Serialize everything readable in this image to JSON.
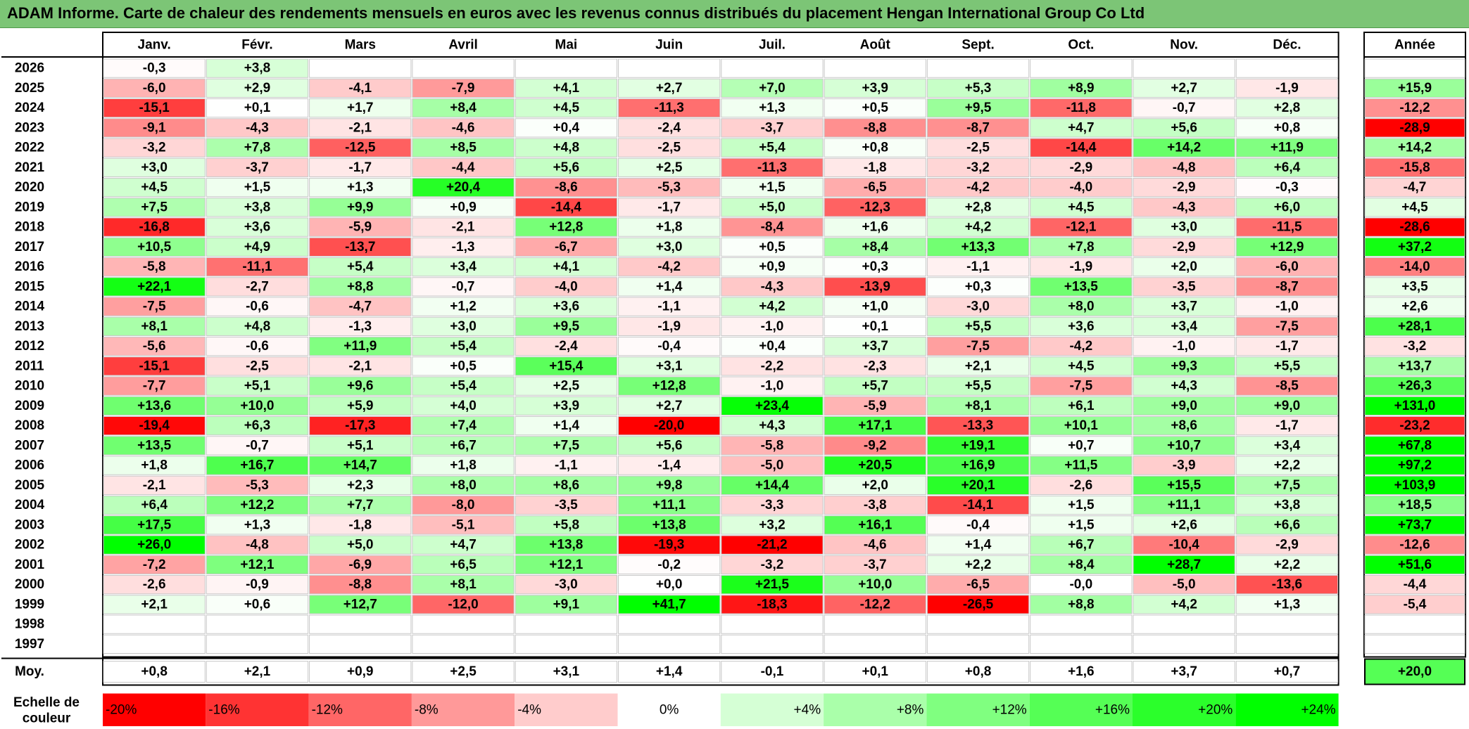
{
  "title": "ADAM Informe. Carte de chaleur des rendements mensuels en euros avec les revenus connus distribués du placement Hengan International Group Co Ltd",
  "colors": {
    "title_bg": "#7cc576",
    "negative_max": "#ff0000",
    "positive_max": "#00ff00",
    "neutral": "#ffffff",
    "grid": "#c8c8c8"
  },
  "chart_data": {
    "type": "heatmap",
    "months": [
      "Janv.",
      "Févr.",
      "Mars",
      "Avril",
      "Mai",
      "Juin",
      "Juil.",
      "Août",
      "Sept.",
      "Oct.",
      "Nov.",
      "Déc."
    ],
    "year_header": "Année",
    "avg_label": "Moy.",
    "scale_label": [
      "Echelle de",
      "couleur"
    ],
    "rows": [
      {
        "year": "2026",
        "months": [
          "-0,3",
          "+3,8",
          "",
          "",
          "",
          "",
          "",
          "",
          "",
          "",
          "",
          ""
        ],
        "total": ""
      },
      {
        "year": "2025",
        "months": [
          "-6,0",
          "+2,9",
          "-4,1",
          "-7,9",
          "+4,1",
          "+2,7",
          "+7,0",
          "+3,9",
          "+5,3",
          "+8,9",
          "+2,7",
          "-1,9"
        ],
        "total": "+15,9"
      },
      {
        "year": "2024",
        "months": [
          "-15,1",
          "+0,1",
          "+1,7",
          "+8,4",
          "+4,5",
          "-11,3",
          "+1,3",
          "+0,5",
          "+9,5",
          "-11,8",
          "-0,7",
          "+2,8"
        ],
        "total": "-12,2"
      },
      {
        "year": "2023",
        "months": [
          "-9,1",
          "-4,3",
          "-2,1",
          "-4,6",
          "+0,4",
          "-2,4",
          "-3,7",
          "-8,8",
          "-8,7",
          "+4,7",
          "+5,6",
          "+0,8"
        ],
        "total": "-28,9"
      },
      {
        "year": "2022",
        "months": [
          "-3,2",
          "+7,8",
          "-12,5",
          "+8,5",
          "+4,8",
          "-2,5",
          "+5,4",
          "+0,8",
          "-2,5",
          "-14,4",
          "+14,2",
          "+11,9"
        ],
        "total": "+14,2"
      },
      {
        "year": "2021",
        "months": [
          "+3,0",
          "-3,7",
          "-1,7",
          "-4,4",
          "+5,6",
          "+2,5",
          "-11,3",
          "-1,8",
          "-3,2",
          "-2,9",
          "-4,8",
          "+6,4"
        ],
        "total": "-15,8"
      },
      {
        "year": "2020",
        "months": [
          "+4,5",
          "+1,5",
          "+1,3",
          "+20,4",
          "-8,6",
          "-5,3",
          "+1,5",
          "-6,5",
          "-4,2",
          "-4,0",
          "-2,9",
          "-0,3"
        ],
        "total": "-4,7"
      },
      {
        "year": "2019",
        "months": [
          "+7,5",
          "+3,8",
          "+9,9",
          "+0,9",
          "-14,4",
          "-1,7",
          "+5,0",
          "-12,3",
          "+2,8",
          "+4,5",
          "-4,3",
          "+6,0"
        ],
        "total": "+4,5"
      },
      {
        "year": "2018",
        "months": [
          "-16,8",
          "+3,6",
          "-5,9",
          "-2,1",
          "+12,8",
          "+1,8",
          "-8,4",
          "+1,6",
          "+4,2",
          "-12,1",
          "+3,0",
          "-11,5"
        ],
        "total": "-28,6"
      },
      {
        "year": "2017",
        "months": [
          "+10,5",
          "+4,9",
          "-13,7",
          "-1,3",
          "-6,7",
          "+3,0",
          "+0,5",
          "+8,4",
          "+13,3",
          "+7,8",
          "-2,9",
          "+12,9"
        ],
        "total": "+37,2"
      },
      {
        "year": "2016",
        "months": [
          "-5,8",
          "-11,1",
          "+5,4",
          "+3,4",
          "+4,1",
          "-4,2",
          "+0,9",
          "+0,3",
          "-1,1",
          "-1,9",
          "+2,0",
          "-6,0"
        ],
        "total": "-14,0"
      },
      {
        "year": "2015",
        "months": [
          "+22,1",
          "-2,7",
          "+8,8",
          "-0,7",
          "-4,0",
          "+1,4",
          "-4,3",
          "-13,9",
          "+0,3",
          "+13,5",
          "-3,5",
          "-8,7"
        ],
        "total": "+3,5"
      },
      {
        "year": "2014",
        "months": [
          "-7,5",
          "-0,6",
          "-4,7",
          "+1,2",
          "+3,6",
          "-1,1",
          "+4,2",
          "+1,0",
          "-3,0",
          "+8,0",
          "+3,7",
          "-1,0"
        ],
        "total": "+2,6"
      },
      {
        "year": "2013",
        "months": [
          "+8,1",
          "+4,8",
          "-1,3",
          "+3,0",
          "+9,5",
          "-1,9",
          "-1,0",
          "+0,1",
          "+5,5",
          "+3,6",
          "+3,4",
          "-7,5"
        ],
        "total": "+28,1"
      },
      {
        "year": "2012",
        "months": [
          "-5,6",
          "-0,6",
          "+11,9",
          "+5,4",
          "-2,4",
          "-0,4",
          "+0,4",
          "+3,7",
          "-7,5",
          "-4,2",
          "-1,0",
          "-1,7"
        ],
        "total": "-3,2"
      },
      {
        "year": "2011",
        "months": [
          "-15,1",
          "-2,5",
          "-2,1",
          "+0,5",
          "+15,4",
          "+3,1",
          "-2,2",
          "-2,3",
          "+2,1",
          "+4,5",
          "+9,3",
          "+5,5"
        ],
        "total": "+13,7"
      },
      {
        "year": "2010",
        "months": [
          "-7,7",
          "+5,1",
          "+9,6",
          "+5,4",
          "+2,5",
          "+12,8",
          "-1,0",
          "+5,7",
          "+5,5",
          "-7,5",
          "+4,3",
          "-8,5"
        ],
        "total": "+26,3"
      },
      {
        "year": "2009",
        "months": [
          "+13,6",
          "+10,0",
          "+5,9",
          "+4,0",
          "+3,9",
          "+2,7",
          "+23,4",
          "-5,9",
          "+8,1",
          "+6,1",
          "+9,0",
          "+9,0"
        ],
        "total": "+131,0"
      },
      {
        "year": "2008",
        "months": [
          "-19,4",
          "+6,3",
          "-17,3",
          "+7,4",
          "+1,4",
          "-20,0",
          "+4,3",
          "+17,1",
          "-13,3",
          "+10,1",
          "+8,6",
          "-1,7"
        ],
        "total": "-23,2"
      },
      {
        "year": "2007",
        "months": [
          "+13,5",
          "-0,7",
          "+5,1",
          "+6,7",
          "+7,5",
          "+5,6",
          "-5,8",
          "-9,2",
          "+19,1",
          "+0,7",
          "+10,7",
          "+3,4"
        ],
        "total": "+67,8"
      },
      {
        "year": "2006",
        "months": [
          "+1,8",
          "+16,7",
          "+14,7",
          "+1,8",
          "-1,1",
          "-1,4",
          "-5,0",
          "+20,5",
          "+16,9",
          "+11,5",
          "-3,9",
          "+2,2"
        ],
        "total": "+97,2"
      },
      {
        "year": "2005",
        "months": [
          "-2,1",
          "-5,3",
          "+2,3",
          "+8,0",
          "+8,6",
          "+9,8",
          "+14,4",
          "+2,0",
          "+20,1",
          "-2,6",
          "+15,5",
          "+7,5"
        ],
        "total": "+103,9"
      },
      {
        "year": "2004",
        "months": [
          "+6,4",
          "+12,2",
          "+7,7",
          "-8,0",
          "-3,5",
          "+11,1",
          "-3,3",
          "-3,8",
          "-14,1",
          "+1,5",
          "+11,1",
          "+3,8"
        ],
        "total": "+18,5"
      },
      {
        "year": "2003",
        "months": [
          "+17,5",
          "+1,3",
          "-1,8",
          "-5,1",
          "+5,8",
          "+13,8",
          "+3,2",
          "+16,1",
          "-0,4",
          "+1,5",
          "+2,6",
          "+6,6"
        ],
        "total": "+73,7"
      },
      {
        "year": "2002",
        "months": [
          "+26,0",
          "-4,8",
          "+5,0",
          "+4,7",
          "+13,8",
          "-19,3",
          "-21,2",
          "-4,6",
          "+1,4",
          "+6,7",
          "-10,4",
          "-2,9"
        ],
        "total": "-12,6"
      },
      {
        "year": "2001",
        "months": [
          "-7,2",
          "+12,1",
          "-6,9",
          "+6,5",
          "+12,1",
          "-0,2",
          "-3,2",
          "-3,7",
          "+2,2",
          "+8,4",
          "+28,7",
          "+2,2"
        ],
        "total": "+51,6"
      },
      {
        "year": "2000",
        "months": [
          "-2,6",
          "-0,9",
          "-8,8",
          "+8,1",
          "-3,0",
          "+0,0",
          "+21,5",
          "+10,0",
          "-6,5",
          "-0,0",
          "-5,0",
          "-13,6"
        ],
        "total": "-4,4"
      },
      {
        "year": "1999",
        "months": [
          "+2,1",
          "+0,6",
          "+12,7",
          "-12,0",
          "+9,1",
          "+41,7",
          "-18,3",
          "-12,2",
          "-26,5",
          "+8,8",
          "+4,2",
          "+1,3"
        ],
        "total": "-5,4"
      },
      {
        "year": "1998",
        "months": [
          "",
          "",
          "",
          "",
          "",
          "",
          "",
          "",
          "",
          "",
          "",
          ""
        ],
        "total": ""
      },
      {
        "year": "1997",
        "months": [
          "",
          "",
          "",
          "",
          "",
          "",
          "",
          "",
          "",
          "",
          "",
          ""
        ],
        "total": ""
      }
    ],
    "average": {
      "months": [
        "+0,8",
        "+2,1",
        "+0,9",
        "+2,5",
        "+3,1",
        "+1,4",
        "-0,1",
        "+0,1",
        "+0,8",
        "+1,6",
        "+3,7",
        "+0,7"
      ],
      "total": "+20,0"
    },
    "scale": [
      "-20%",
      "-16%",
      "-12%",
      "-8%",
      "-4%",
      "0%",
      "+4%",
      "+8%",
      "+12%",
      "+16%",
      "+20%",
      "+24%"
    ]
  }
}
